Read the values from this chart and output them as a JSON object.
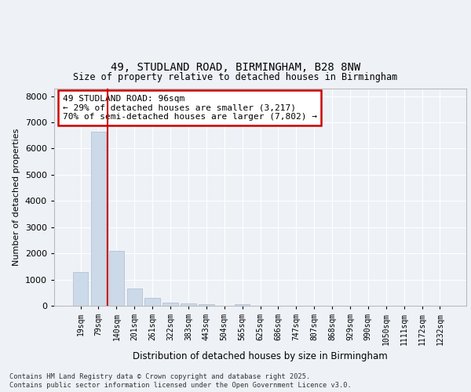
{
  "title_line1": "49, STUDLAND ROAD, BIRMINGHAM, B28 8NW",
  "title_line2": "Size of property relative to detached houses in Birmingham",
  "xlabel": "Distribution of detached houses by size in Birmingham",
  "ylabel": "Number of detached properties",
  "categories": [
    "19sqm",
    "79sqm",
    "140sqm",
    "201sqm",
    "261sqm",
    "322sqm",
    "383sqm",
    "443sqm",
    "504sqm",
    "565sqm",
    "625sqm",
    "686sqm",
    "747sqm",
    "807sqm",
    "868sqm",
    "929sqm",
    "990sqm",
    "1050sqm",
    "1111sqm",
    "1172sqm",
    "1232sqm"
  ],
  "values": [
    1280,
    6650,
    2080,
    670,
    290,
    125,
    75,
    50,
    0,
    60,
    0,
    0,
    0,
    0,
    0,
    0,
    0,
    0,
    0,
    0,
    0
  ],
  "bar_color": "#ccd9e8",
  "bar_edgecolor": "#aabbd0",
  "vline_x": 1.5,
  "vline_color": "#cc0000",
  "annotation_text": "49 STUDLAND ROAD: 96sqm\n← 29% of detached houses are smaller (3,217)\n70% of semi-detached houses are larger (7,802) →",
  "annotation_box_edgecolor": "#cc0000",
  "ylim": [
    0,
    8300
  ],
  "yticks": [
    0,
    1000,
    2000,
    3000,
    4000,
    5000,
    6000,
    7000,
    8000
  ],
  "background_color": "#eef2f7",
  "axes_background": "#eef2f7",
  "grid_color": "#ffffff",
  "footer_line1": "Contains HM Land Registry data © Crown copyright and database right 2025.",
  "footer_line2": "Contains public sector information licensed under the Open Government Licence v3.0."
}
